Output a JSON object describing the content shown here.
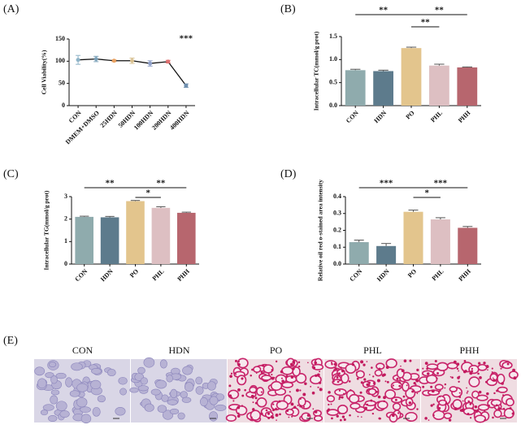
{
  "chart_data": [
    {
      "type": "line",
      "panel": "(A)",
      "y_label": "Cell Viability(%)",
      "categories": [
        "CON",
        "DMEM+DMSO",
        "25HDN",
        "50HDN",
        "100HDN",
        "200HDN",
        "400HDN"
      ],
      "values": [
        103,
        105,
        101,
        101,
        95,
        99,
        45
      ],
      "errors": [
        10,
        6,
        2,
        6,
        6,
        3,
        4
      ],
      "colors": [
        "#8fb4c8",
        "#7aa0b8",
        "#e8a060",
        "#d8c090",
        "#8fa0c8",
        "#e07070",
        "#7090b0"
      ],
      "line_color": "#111111",
      "ylim": [
        0,
        150
      ],
      "yticks": [
        0,
        50,
        100,
        150
      ],
      "annotation": "***"
    },
    {
      "type": "bar",
      "panel": "(B)",
      "y_label": "Intracellular TC(mmol/g prot)",
      "categories": [
        "CON",
        "HDN",
        "PO",
        "PHL",
        "PHH"
      ],
      "values": [
        0.77,
        0.75,
        1.25,
        0.87,
        0.83
      ],
      "errors": [
        0.02,
        0.02,
        0.02,
        0.03,
        0.01
      ],
      "colors": [
        "#8fabad",
        "#5d7b8c",
        "#e3c58d",
        "#ddbfc2",
        "#b7666e"
      ],
      "ylim": [
        0,
        1.5
      ],
      "yticks": [
        {
          "value": 0,
          "label": "0.0"
        },
        0.5,
        {
          "value": 1,
          "label": "1.0"
        },
        1.5
      ],
      "significance": [
        {
          "from": "CON",
          "to": "PO",
          "label": "**"
        },
        {
          "from": "PO",
          "to": "PHH",
          "label": "**"
        },
        {
          "from": "PO",
          "to": "PHL",
          "label": "**"
        }
      ]
    },
    {
      "type": "bar",
      "panel": "(C)",
      "y_label": "Intracellular TG(mmol/g prot)",
      "categories": [
        "CON",
        "HDN",
        "PO",
        "PHL",
        "PHH"
      ],
      "values": [
        2.1,
        2.08,
        2.8,
        2.5,
        2.28
      ],
      "errors": [
        0.03,
        0.04,
        0.03,
        0.05,
        0.03
      ],
      "colors": [
        "#8fabad",
        "#5d7b8c",
        "#e3c58d",
        "#ddbfc2",
        "#b7666e"
      ],
      "ylim": [
        0,
        3
      ],
      "yticks": [
        0,
        1,
        2,
        3
      ],
      "significance": [
        {
          "from": "CON",
          "to": "PO",
          "label": "**"
        },
        {
          "from": "PO",
          "to": "PHH",
          "label": "**"
        },
        {
          "from": "PO",
          "to": "PHL",
          "label": "*"
        }
      ]
    },
    {
      "type": "bar",
      "panel": "(D)",
      "y_label": "Relative oil red o-stained area intensity",
      "categories": [
        "CON",
        "HDN",
        "PO",
        "PHL",
        "PHH"
      ],
      "values": [
        0.13,
        0.107,
        0.31,
        0.265,
        0.215
      ],
      "errors": [
        0.012,
        0.015,
        0.01,
        0.01,
        0.008
      ],
      "colors": [
        "#8fabad",
        "#5d7b8c",
        "#e3c58d",
        "#ddbfc2",
        "#b7666e"
      ],
      "ylim": [
        0,
        0.4
      ],
      "yticks": [
        {
          "value": 0,
          "label": "0.0"
        },
        0.1,
        0.2,
        0.3,
        0.4
      ],
      "significance": [
        {
          "from": "CON",
          "to": "PO",
          "label": "***"
        },
        {
          "from": "PO",
          "to": "PHH",
          "label": "***"
        },
        {
          "from": "PO",
          "to": "PHL",
          "label": "*"
        }
      ]
    }
  ],
  "micrographs": {
    "panel": "(E)",
    "titles": [
      "CON",
      "HDN",
      "PO",
      "PHL",
      "PHH"
    ]
  }
}
